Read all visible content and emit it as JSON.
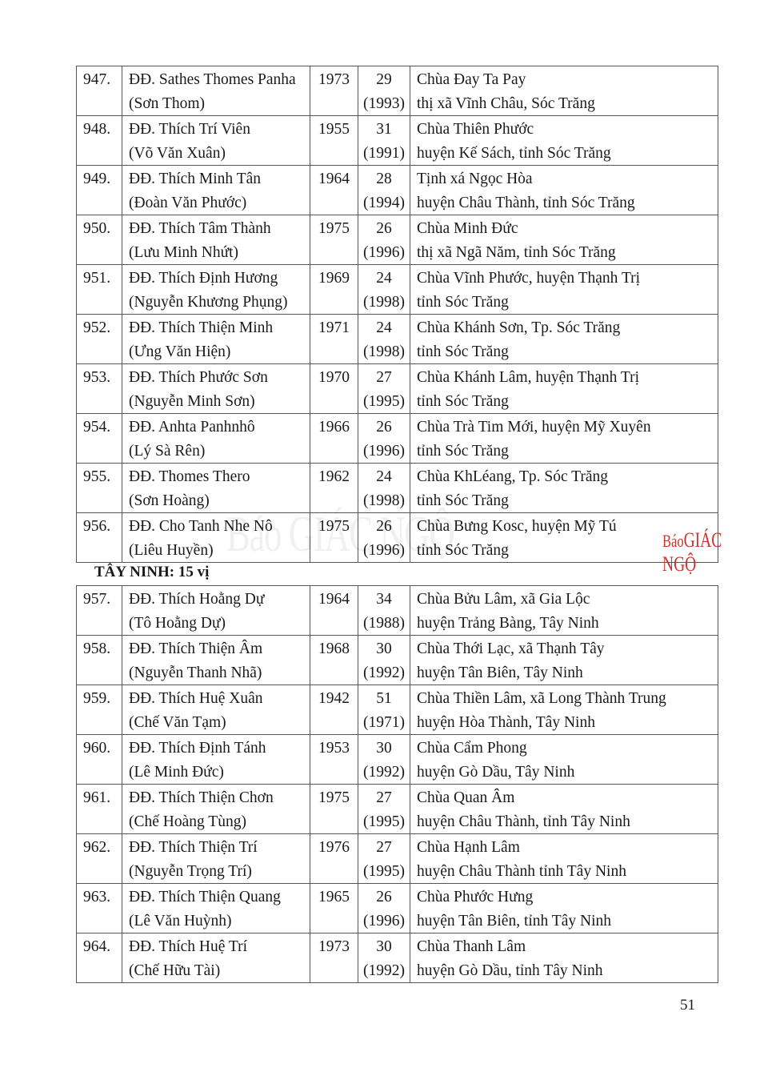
{
  "table1": [
    {
      "no": "947.",
      "name": "ĐĐ. Sathes Thomes Panha",
      "lay_name": "(Sơn Thom)",
      "birth": "1973",
      "age": "29",
      "year": "(1993)",
      "place1": "Chùa Đay Ta Pay",
      "place2": "thị xã Vĩnh Châu, Sóc Trăng"
    },
    {
      "no": "948.",
      "name": "ĐĐ. Thích Trí Viên",
      "lay_name": "(Võ Văn Xuân)",
      "birth": "1955",
      "age": "31",
      "year": "(1991)",
      "place1": "Chùa Thiên Phước",
      "place2": "huyện Kế Sách, tỉnh Sóc Trăng"
    },
    {
      "no": "949.",
      "name": "ĐĐ. Thích Minh Tân",
      "lay_name": "(Đoàn Văn Phước)",
      "birth": "1964",
      "age": "28",
      "year": "(1994)",
      "place1": "Tịnh xá Ngọc Hòa",
      "place2": "huyện Châu Thành, tỉnh Sóc Trăng"
    },
    {
      "no": "950.",
      "name": "ĐĐ. Thích Tâm Thành",
      "lay_name": "(Lưu Minh Nhứt)",
      "birth": "1975",
      "age": "26",
      "year": "(1996)",
      "place1": "Chùa Minh Đức",
      "place2": "thị xã Ngã Năm, tỉnh Sóc Trăng"
    },
    {
      "no": "951.",
      "name": "ĐĐ. Thích Định Hương",
      "lay_name": "(Nguyễn Khương Phụng)",
      "birth": "1969",
      "age": "24",
      "year": "(1998)",
      "place1": "Chùa Vĩnh Phước, huyện Thạnh Trị",
      "place2": "tỉnh Sóc Trăng"
    },
    {
      "no": "952.",
      "name": "ĐĐ. Thích Thiện Minh",
      "lay_name": "(Ưng Văn Hiện)",
      "birth": "1971",
      "age": "24",
      "year": "(1998)",
      "place1": "Chùa Khánh Sơn, Tp. Sóc Trăng",
      "place2": "tỉnh Sóc Trăng"
    },
    {
      "no": "953.",
      "name": "ĐĐ. Thích Phước Sơn",
      "lay_name": "(Nguyễn Minh Sơn)",
      "birth": "1970",
      "age": "27",
      "year": "(1995)",
      "place1": "Chùa Khánh Lâm, huyện Thạnh Trị",
      "place2": "tỉnh Sóc Trăng"
    },
    {
      "no": "954.",
      "name": "ĐĐ. Anhta Panhnhô",
      "lay_name": "(Lý Sà Rên)",
      "birth": "1966",
      "age": "26",
      "year": "(1996)",
      "place1": "Chùa Trà Tim Mới, huyện Mỹ Xuyên",
      "place2": "tỉnh Sóc Trăng"
    },
    {
      "no": "955.",
      "name": "ĐĐ. Thomes Thero",
      "lay_name": "(Sơn Hoàng)",
      "birth": "1962",
      "age": "24",
      "year": "(1998)",
      "place1": "Chùa KhLéang, Tp. Sóc Trăng",
      "place2": "tỉnh Sóc Trăng"
    },
    {
      "no": "956.",
      "name": "ĐĐ. Cho Tanh Nhe Nô",
      "lay_name": "(Liêu Huyền)",
      "birth": "1975",
      "age": "26",
      "year": "(1996)",
      "place1": "Chùa Bưng Kosc, huyện Mỹ Tú",
      "place2": "tỉnh Sóc Trăng"
    }
  ],
  "section_heading": "TÂY NINH: 15 vị",
  "table2": [
    {
      "no": "957.",
      "name": "ĐĐ. Thích Hoằng Dự",
      "lay_name": "(Tô Hoằng Dự)",
      "birth": "1964",
      "age": "34",
      "year": "(1988)",
      "place1": "Chùa Bửu Lâm, xã Gia Lộc",
      "place2": "huyện Trảng Bàng, Tây Ninh"
    },
    {
      "no": "958.",
      "name": "ĐĐ. Thích Thiện Âm",
      "lay_name": "(Nguyễn Thanh Nhã)",
      "birth": "1968",
      "age": "30",
      "year": "(1992)",
      "place1": "Chùa Thới Lạc, xã Thạnh Tây",
      "place2": "huyện Tân Biên, Tây Ninh"
    },
    {
      "no": "959.",
      "name": "ĐĐ. Thích Huệ Xuân",
      "lay_name": "(Chế Văn Tạm)",
      "birth": "1942",
      "age": "51",
      "year": "(1971)",
      "place1": "Chùa Thiền Lâm, xã Long Thành Trung",
      "place2": "huyện Hòa Thành, Tây Ninh"
    },
    {
      "no": "960.",
      "name": "ĐĐ. Thích Định Tánh",
      "lay_name": "(Lê Minh Đức)",
      "birth": "1953",
      "age": "30",
      "year": "(1992)",
      "place1": "Chùa Cẩm Phong",
      "place2": "huyện Gò Dầu, Tây Ninh"
    },
    {
      "no": "961.",
      "name": "ĐĐ. Thích Thiện Chơn",
      "lay_name": "(Chế Hoàng Tùng)",
      "birth": "1975",
      "age": "27",
      "year": "(1995)",
      "place1": "Chùa Quan Âm",
      "place2": "huyện Châu Thành, tỉnh Tây Ninh"
    },
    {
      "no": "962.",
      "name": "ĐĐ. Thích Thiện Trí",
      "lay_name": "(Nguyễn Trọng Trí)",
      "birth": "1976",
      "age": "27",
      "year": "(1995)",
      "place1": "Chùa Hạnh Lâm",
      "place2": "huyện Châu Thành tỉnh Tây Ninh"
    },
    {
      "no": "963.",
      "name": "ĐĐ. Thích Thiện Quang",
      "lay_name": "(Lê Văn Huỳnh)",
      "birth": "1965",
      "age": "26",
      "year": "(1996)",
      "place1": "Chùa Phước Hưng",
      "place2": "huyện Tân Biên, tỉnh Tây Ninh"
    },
    {
      "no": "964.",
      "name": "ĐĐ. Thích Huệ Trí",
      "lay_name": "(Chế Hữu Tài)",
      "birth": "1973",
      "age": "30",
      "year": "(1992)",
      "place1": "Chùa Thanh Lâm",
      "place2": "huyện Gò Dầu, tỉnh Tây Ninh"
    }
  ],
  "watermark": {
    "text": "Báo GIÁC NGỘ",
    "logo_prefix": "Báo",
    "logo_main": "GIÁC NGỘ",
    "logo_color": "#c8332b"
  },
  "page_number": "51"
}
